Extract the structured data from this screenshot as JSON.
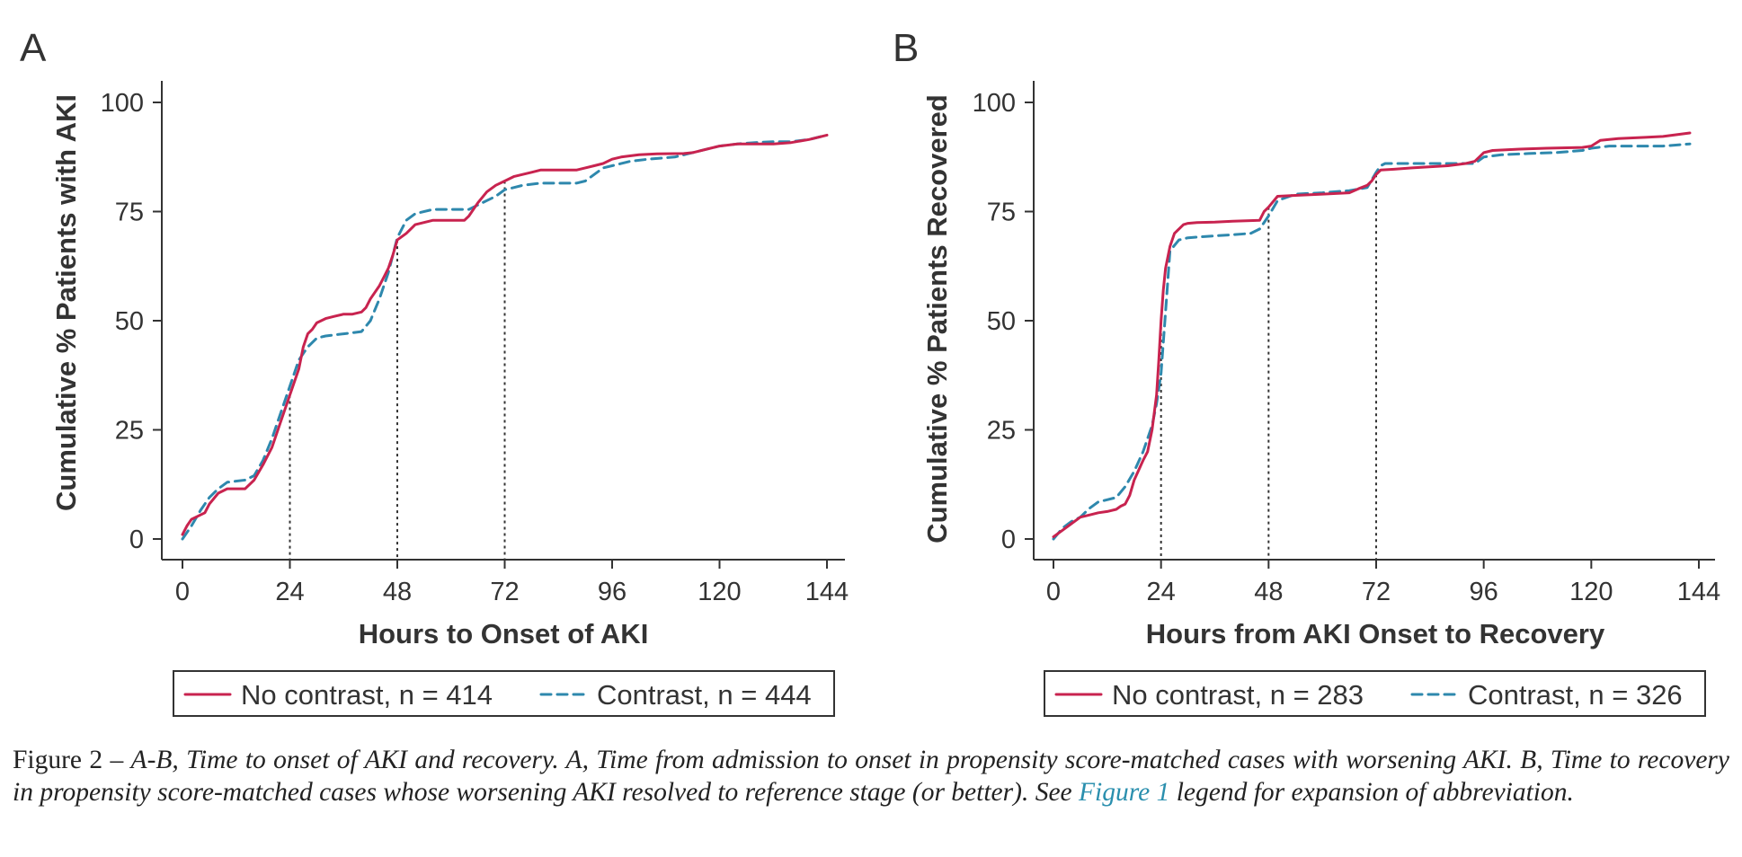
{
  "chart_data": [
    {
      "panel": "A",
      "type": "line",
      "xlabel": "Hours to Onset of AKI",
      "ylabel": "Cumulative % Patients with AKI",
      "xlim": [
        0,
        144
      ],
      "ylim": [
        0,
        100
      ],
      "xticks": [
        0,
        24,
        48,
        72,
        96,
        120,
        144
      ],
      "yticks": [
        0,
        25,
        50,
        75,
        100
      ],
      "reference_lines_x": [
        24,
        48,
        72
      ],
      "series": [
        {
          "name": "No contrast, n = 414",
          "color": "#c8234f",
          "style": "solid",
          "x": [
            0,
            1,
            2,
            3,
            5,
            6,
            8,
            10,
            14,
            16,
            18,
            20,
            22,
            24,
            26,
            27,
            28,
            29,
            30,
            32,
            34,
            36,
            38,
            40,
            41,
            42,
            44,
            45,
            46,
            47,
            48,
            50,
            52,
            56,
            60,
            63,
            64,
            66,
            68,
            70,
            72,
            74,
            76,
            78,
            80,
            82,
            84,
            88,
            90,
            92,
            94,
            96,
            98,
            102,
            106,
            112,
            114,
            118,
            120,
            124,
            128,
            132,
            136,
            140,
            144
          ],
          "y": [
            1,
            3,
            4.5,
            5,
            6,
            8,
            10.5,
            11.5,
            11.5,
            13.5,
            17,
            21,
            27,
            33,
            39,
            44,
            47,
            48,
            49.5,
            50.5,
            51,
            51.5,
            51.5,
            52,
            53,
            55,
            58,
            60,
            62,
            65,
            68.5,
            70,
            72,
            73,
            73,
            73,
            74,
            77,
            79.5,
            81,
            82,
            83,
            83.5,
            84,
            84.5,
            84.5,
            84.5,
            84.5,
            85,
            85.5,
            86,
            87,
            87.5,
            88,
            88.2,
            88.3,
            88.5,
            89.5,
            90,
            90.5,
            90.5,
            90.5,
            90.8,
            91.5,
            92.5
          ]
        },
        {
          "name": "Contrast, n = 444",
          "color": "#2e88ad",
          "style": "dashed",
          "x": [
            0,
            2,
            4,
            6,
            8,
            10,
            14,
            16,
            18,
            20,
            22,
            24,
            26,
            28,
            30,
            32,
            36,
            40,
            42,
            44,
            46,
            48,
            50,
            52,
            56,
            60,
            64,
            66,
            68,
            70,
            72,
            74,
            76,
            80,
            84,
            88,
            90,
            92,
            94,
            96,
            100,
            104,
            110,
            114,
            118,
            120,
            124,
            128,
            132,
            136,
            140,
            144
          ],
          "y": [
            0,
            3,
            6.5,
            9.5,
            11.5,
            13,
            13.5,
            14.5,
            18,
            23,
            29,
            35,
            41,
            44,
            46,
            46.5,
            47,
            47.5,
            50,
            55,
            61,
            69,
            73,
            74.5,
            75.5,
            75.5,
            75.5,
            76.5,
            77.5,
            78.5,
            80,
            80.5,
            81,
            81.5,
            81.5,
            81.5,
            82,
            83.5,
            85,
            85.5,
            86.5,
            87,
            87.5,
            88.5,
            89.5,
            90,
            90.5,
            90.8,
            91,
            91,
            91.5,
            92.5
          ]
        }
      ]
    },
    {
      "panel": "B",
      "type": "line",
      "xlabel": "Hours from AKI Onset to Recovery",
      "ylabel": "Cumulative % Patients Recovered",
      "xlim": [
        0,
        144
      ],
      "ylim": [
        0,
        100
      ],
      "xticks": [
        0,
        24,
        48,
        72,
        96,
        120,
        144
      ],
      "yticks": [
        0,
        25,
        50,
        75,
        100
      ],
      "reference_lines_x": [
        24,
        48,
        72
      ],
      "series": [
        {
          "name": "No contrast, n = 283",
          "color": "#c8234f",
          "style": "solid",
          "x": [
            0,
            2,
            4,
            6,
            8,
            10,
            12,
            14,
            15,
            16,
            17,
            18,
            20,
            21,
            22,
            23,
            23.5,
            24,
            24.5,
            25,
            26,
            27,
            28,
            29,
            30,
            32,
            36,
            40,
            46,
            47,
            48,
            50,
            54,
            60,
            66,
            68,
            70,
            71,
            72,
            73,
            76,
            80,
            88,
            92,
            94,
            95,
            96,
            98,
            104,
            110,
            118,
            120,
            122,
            126,
            132,
            136,
            142
          ],
          "y": [
            0.5,
            2,
            3.5,
            5,
            5.5,
            6,
            6.3,
            6.8,
            7.5,
            8,
            10,
            13.5,
            18,
            20,
            25,
            33,
            41,
            50,
            57,
            62,
            67,
            70,
            71,
            72,
            72.3,
            72.5,
            72.6,
            72.8,
            73,
            75,
            76,
            78.5,
            78.7,
            79,
            79.3,
            80.2,
            81,
            82,
            83.5,
            84.5,
            84.7,
            85,
            85.5,
            86,
            86.5,
            87.5,
            88.5,
            89,
            89.3,
            89.5,
            89.7,
            90,
            91.3,
            91.7,
            92,
            92.2,
            93
          ]
        },
        {
          "name": "Contrast, n = 326",
          "color": "#2e88ad",
          "style": "dashed",
          "x": [
            0,
            2,
            4,
            6,
            7,
            8,
            10,
            12,
            14,
            16,
            18,
            20,
            22,
            23,
            24,
            25,
            26,
            28,
            30,
            34,
            40,
            44,
            46,
            48,
            50,
            54,
            60,
            66,
            70,
            72,
            73,
            74,
            78,
            84,
            90,
            94,
            96,
            100,
            106,
            112,
            118,
            120,
            124,
            130,
            136,
            142
          ],
          "y": [
            0,
            2.5,
            4,
            5,
            6,
            7,
            8.5,
            9,
            9.5,
            12,
            15.5,
            20,
            26,
            31,
            38,
            52,
            66,
            68.5,
            69,
            69.3,
            69.7,
            70,
            71,
            74,
            77.5,
            79,
            79.3,
            79.8,
            80.5,
            84,
            85.5,
            86,
            86,
            86,
            86,
            86,
            87.5,
            88,
            88.3,
            88.5,
            89,
            89.5,
            90,
            90,
            90,
            90.5
          ]
        }
      ]
    }
  ],
  "caption": {
    "label": "Figure 2 – ",
    "italic_text": "A-B, Time to onset of AKI and recovery. A, Time from admission to onset in propensity score-matched cases with worsening AKI. B, Time to recovery in propensity score-matched cases whose worsening AKI resolved to reference stage (or better). See ",
    "link_text": "Figure 1",
    "tail_text": " legend for expansion of abbreviation."
  }
}
